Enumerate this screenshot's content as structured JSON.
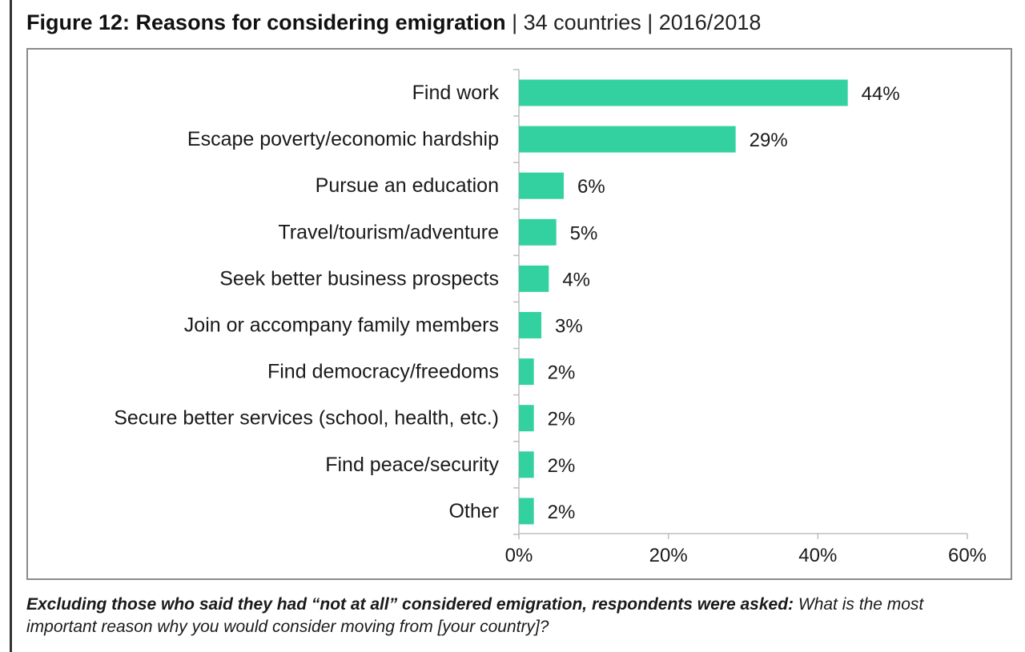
{
  "figure": {
    "title": "Figure 12: Reasons for considering emigration",
    "subtitle": " | 34 countries | 2016/2018"
  },
  "caption": {
    "bold": "Excluding those who said they had “not at all” considered emigration, respondents were asked:",
    "text": " What is the most important reason why you would consider moving from [your country]?"
  },
  "chart_data": {
    "type": "bar",
    "orientation": "horizontal",
    "categories": [
      "Find work",
      "Escape poverty/economic hardship",
      "Pursue an education",
      "Travel/tourism/adventure",
      "Seek better business prospects",
      "Join or accompany family members",
      "Find democracy/freedoms",
      "Secure better services (school, health, etc.)",
      "Find peace/security",
      "Other"
    ],
    "values": [
      44,
      29,
      6,
      5,
      4,
      3,
      2,
      2,
      2,
      2
    ],
    "value_labels": [
      "44%",
      "29%",
      "6%",
      "5%",
      "4%",
      "3%",
      "2%",
      "2%",
      "2%",
      "2%"
    ],
    "xlim": [
      0,
      60
    ],
    "x_ticks": [
      0,
      20,
      40,
      60
    ],
    "x_tick_labels": [
      "0%",
      "20%",
      "40%",
      "60%"
    ],
    "bar_color": "#33d1a0",
    "grid": false,
    "legend": "none"
  }
}
